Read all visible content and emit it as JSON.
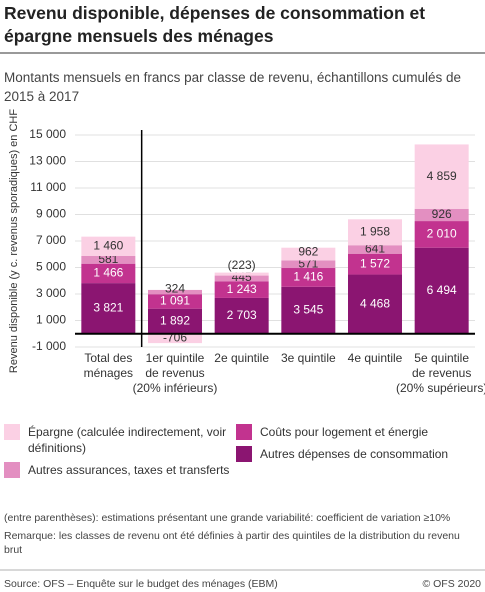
{
  "chart_data": {
    "type": "stacked-bar",
    "title": "Revenu disponible, dépenses de consommation et épargne mensuels des ménages",
    "subtitle": "Montants mensuels en francs par classe de revenu, échantillons cumulés de 2015 à 2017",
    "y_label": "Revenu disponible (y c. revenus sporadiques) en CHF",
    "categories": [
      [
        "Total des",
        "ménages"
      ],
      [
        "1er quintile",
        "de revenus",
        "(20% inférieurs)"
      ],
      [
        "2e quintile"
      ],
      [
        "3e quintile"
      ],
      [
        "4e quintile"
      ],
      [
        "5e quintile",
        "de revenus",
        "(20% supérieurs)"
      ]
    ],
    "series": [
      {
        "name": "Autres dépenses de consommation",
        "color": "#8b1571",
        "values": [
          3821,
          1892,
          2703,
          3545,
          4468,
          6494
        ],
        "value_labels": [
          "3 821",
          "1 892",
          "2 703",
          "3 545",
          "4 468",
          "6 494"
        ]
      },
      {
        "name": "Coûts pour logement et énergie",
        "color": "#c2338f",
        "values": [
          1466,
          1091,
          1243,
          1416,
          1572,
          2010
        ],
        "value_labels": [
          "1 466",
          "1 091",
          "1 243",
          "1 416",
          "1 572",
          "2 010"
        ]
      },
      {
        "name": "Autres assurances, taxes et transferts",
        "color": "#e38fc1",
        "values": [
          581,
          324,
          445,
          571,
          641,
          926
        ],
        "value_labels": [
          "581",
          "324",
          "445",
          "571",
          "641",
          "926"
        ]
      },
      {
        "name": "Épargne (calculée indirectement, voir définitions)",
        "color": "#fbd0e4",
        "values": [
          1460,
          -706,
          223,
          962,
          1958,
          4859
        ],
        "value_labels": [
          "1 460",
          "-706",
          "(223)",
          "962",
          "1 958",
          "4 859"
        ]
      }
    ],
    "ylim": [
      -1000,
      15000
    ],
    "yticks": [
      {
        "value": -1000,
        "label": "-1 000"
      },
      {
        "value": 1000,
        "label": "1 000"
      },
      {
        "value": 3000,
        "label": "3 000"
      },
      {
        "value": 5000,
        "label": "5 000"
      },
      {
        "value": 7000,
        "label": "7 000"
      },
      {
        "value": 9000,
        "label": "9 000"
      },
      {
        "value": 11000,
        "label": "11 000"
      },
      {
        "value": 13000,
        "label": "13 000"
      },
      {
        "value": 15000,
        "label": "15 000"
      }
    ],
    "grid": true,
    "notes": [
      "(entre parenthèses): estimations présentant une grande variabilité: coefficient de variation ≥10%",
      "Remarque: les classes de revenu ont été définies à partir des quintiles de la distribution du revenu brut"
    ],
    "source": "Source: OFS – Enquête sur le budget des ménages (EBM)",
    "copyright": "© OFS 2020"
  }
}
